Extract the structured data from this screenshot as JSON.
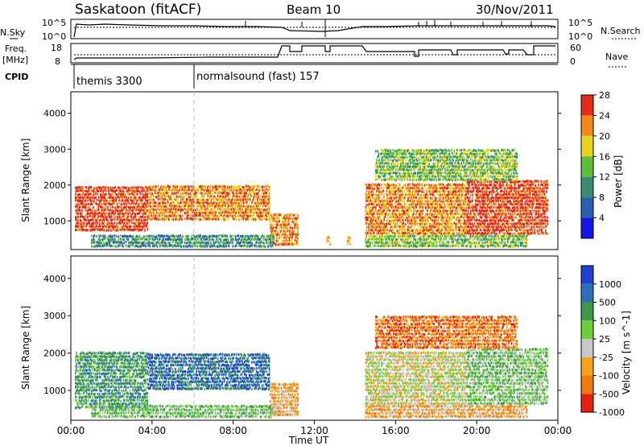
{
  "header": {
    "station": "Saskatoon (fitACF)",
    "beam": "Beam 10",
    "date": "30/Nov/2011"
  },
  "strip_labels": {
    "nsky": "N.Sky",
    "nsky_ticks": [
      "10^5",
      "10^0"
    ],
    "nsearch": "N.Search",
    "nsearch_ticks": [
      "10^5",
      "10^0"
    ],
    "freq_line1": "Freq.",
    "freq_line2": "[MHz]",
    "freq_ticks": [
      "18",
      "8"
    ],
    "nave": "Nave",
    "nave_ticks": [
      "60",
      "0"
    ],
    "cpid": "CPID"
  },
  "cpid_segments": [
    {
      "label": "themis 3300",
      "start": 0,
      "end": 6
    },
    {
      "label": "normalsound (fast) 157",
      "start": 6,
      "end": 24
    }
  ],
  "chart_data": [
    {
      "type": "heatmap",
      "panel": "power",
      "xlabel": "",
      "ylabel": "Slant Range [km]",
      "xlim": [
        0,
        24
      ],
      "ylim": [
        200,
        4600
      ],
      "yticks": [
        "1000",
        "2000",
        "3000",
        "4000"
      ],
      "colorbar": {
        "label": "Power [dB]",
        "ticks": [
          "4",
          "8",
          "12",
          "16",
          "20",
          "24",
          "28"
        ],
        "colors": [
          "#1515e6",
          "#2a5fb0",
          "#3a8c6e",
          "#5cbf3a",
          "#e8d21e",
          "#f08a1a",
          "#e62a1a"
        ]
      },
      "regions": [
        {
          "t0": 0.2,
          "t1": 3.8,
          "r0": 700,
          "r1": 2000,
          "level": 6
        },
        {
          "t0": 3.8,
          "t1": 9.8,
          "r0": 1000,
          "r1": 2000,
          "level": 5
        },
        {
          "t0": 9.8,
          "t1": 11.2,
          "r0": 300,
          "r1": 1200,
          "level": 5
        },
        {
          "t0": 12.6,
          "t1": 12.8,
          "r0": 300,
          "r1": 600,
          "level": 4
        },
        {
          "t0": 13.6,
          "t1": 13.8,
          "r0": 300,
          "r1": 600,
          "level": 4
        },
        {
          "t0": 14.5,
          "t1": 19.5,
          "r0": 600,
          "r1": 2000,
          "level": 5
        },
        {
          "t0": 19.5,
          "t1": 23.5,
          "r0": 600,
          "r1": 2100,
          "level": 6
        },
        {
          "t0": 1.0,
          "t1": 10.0,
          "r0": 250,
          "r1": 650,
          "level": 2
        },
        {
          "t0": 14.5,
          "t1": 22.5,
          "r0": 250,
          "r1": 600,
          "level": 3
        },
        {
          "t0": 15.0,
          "t1": 22.0,
          "r0": 2100,
          "r1": 3000,
          "level": 3
        }
      ]
    },
    {
      "type": "heatmap",
      "panel": "velocity",
      "xlabel": "Time UT",
      "ylabel": "Slant Range [km]",
      "xlim": [
        0,
        24
      ],
      "ylim": [
        200,
        4600
      ],
      "xticks": [
        "00:00",
        "04:00",
        "08:00",
        "12:00",
        "16:00",
        "20:00",
        "00:00"
      ],
      "yticks": [
        "1000",
        "2000",
        "3000",
        "4000"
      ],
      "colorbar": {
        "label": "Velocity [m s^-1]",
        "ticks": [
          "1000",
          "500",
          "100",
          "25",
          "-25",
          "-100",
          "-500",
          "-1000"
        ],
        "colors": [
          "#1f3fd0",
          "#2f6fb8",
          "#3c9a4a",
          "#6ad03a",
          "#c8c8c8",
          "#f5a21a",
          "#f07a10",
          "#e62010"
        ]
      },
      "regions": [
        {
          "t0": 0.2,
          "t1": 3.8,
          "r0": 500,
          "r1": 2000,
          "level": 2
        },
        {
          "t0": 3.8,
          "t1": 9.8,
          "r0": 1000,
          "r1": 2000,
          "level": 1
        },
        {
          "t0": 9.8,
          "t1": 11.2,
          "r0": 300,
          "r1": 1200,
          "level": 5
        },
        {
          "t0": 14.5,
          "t1": 19.5,
          "r0": 600,
          "r1": 2000,
          "level": 4
        },
        {
          "t0": 19.5,
          "t1": 23.5,
          "r0": 600,
          "r1": 2100,
          "level": 3
        },
        {
          "t0": 1.0,
          "t1": 10.0,
          "r0": 250,
          "r1": 650,
          "level": 3
        },
        {
          "t0": 14.5,
          "t1": 22.5,
          "r0": 250,
          "r1": 600,
          "level": 5
        },
        {
          "t0": 15.0,
          "t1": 22.0,
          "r0": 2100,
          "r1": 3000,
          "level": 6
        }
      ]
    }
  ]
}
